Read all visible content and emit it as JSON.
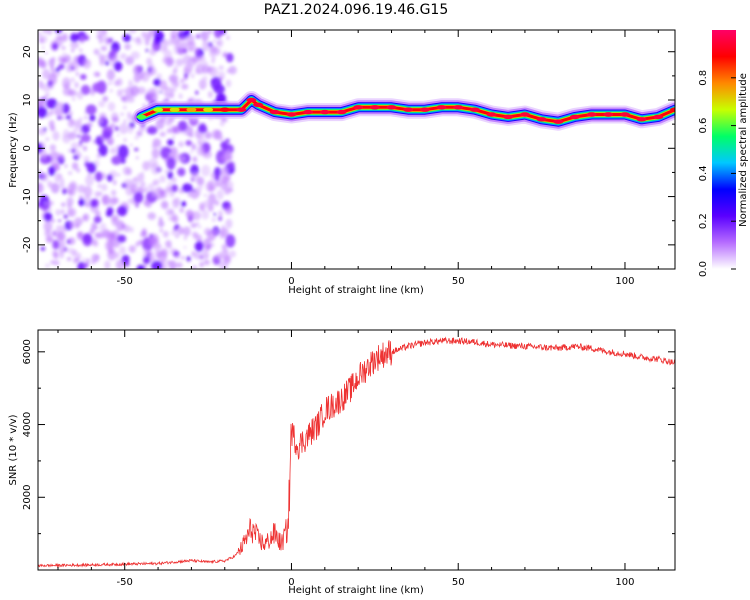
{
  "title": "PAZ1.2024.096.19.46.G15",
  "colors": {
    "snr_line": "#ee3333",
    "axis": "#000000",
    "colormap": [
      "#ffffff",
      "#b66cff",
      "#5a00ff",
      "#0000ff",
      "#00c8ff",
      "#00ff66",
      "#c8ff00",
      "#ff8800",
      "#ff0000",
      "#ff0066"
    ]
  },
  "chart_data": [
    {
      "type": "heatmap",
      "xlabel": "Height of straight line (km)",
      "ylabel": "Frequency (Hz)",
      "xlim": [
        -76,
        115
      ],
      "ylim": [
        -25,
        24.5
      ],
      "xticks": [
        -50,
        0,
        50,
        100
      ],
      "xtick_labels": [
        "-50",
        "0",
        "50",
        "100"
      ],
      "yticks": [
        -20,
        -10,
        0,
        10,
        20
      ],
      "ytick_labels": [
        "-20",
        "-10",
        "0",
        "10",
        "20"
      ],
      "ridge": {
        "x": [
          -45,
          -40,
          -35,
          -30,
          -25,
          -20,
          -15,
          -12,
          -10,
          -5,
          0,
          5,
          10,
          15,
          20,
          25,
          30,
          35,
          40,
          45,
          50,
          55,
          60,
          65,
          70,
          75,
          80,
          85,
          90,
          95,
          100,
          105,
          110,
          115
        ],
        "frequency": [
          6.5,
          8,
          8,
          8,
          8,
          8,
          8,
          10,
          9,
          7.5,
          7,
          7.5,
          7.5,
          7.5,
          8.5,
          8.5,
          8.5,
          8,
          8,
          8.5,
          8.5,
          8,
          7,
          6.5,
          7,
          6,
          5.5,
          6.5,
          7,
          7,
          7,
          6,
          6.5,
          8
        ],
        "amplitude": [
          0.6,
          0.65,
          0.7,
          0.75,
          0.7,
          0.9,
          0.95,
          0.95,
          0.95,
          0.95,
          0.95,
          0.95,
          0.95,
          0.95,
          0.95,
          0.95,
          0.95,
          0.95,
          0.95,
          0.95,
          0.95,
          0.95,
          0.95,
          0.95,
          0.95,
          0.95,
          0.95,
          0.95,
          0.95,
          0.95,
          0.95,
          0.95,
          0.95,
          0.9
        ]
      },
      "noise_region_x": [
        -76,
        -20
      ],
      "colorbar": {
        "label": "Normalized spectral amplitude",
        "range": [
          0,
          1
        ],
        "ticks": [
          0.0,
          0.2,
          0.4,
          0.6,
          0.8
        ],
        "tick_labels": [
          "0.0",
          "0.2",
          "0.4",
          "0.6",
          "0.8"
        ]
      }
    },
    {
      "type": "line",
      "xlabel": "Height of straight line (km)",
      "ylabel": "SNR (10 * v/v)",
      "xlim": [
        -76,
        115
      ],
      "ylim": [
        0,
        6600
      ],
      "xticks": [
        -50,
        0,
        50,
        100
      ],
      "xtick_labels": [
        "-50",
        "0",
        "50",
        "100"
      ],
      "yticks": [
        2000,
        4000,
        6000
      ],
      "ytick_labels": [
        "2000",
        "4000",
        "6000"
      ],
      "series": [
        {
          "x": [
            -76,
            -60,
            -40,
            -30,
            -25,
            -20,
            -17,
            -15,
            -12,
            -10,
            -8,
            -5,
            -3,
            -1,
            0,
            2,
            5,
            8,
            10,
            12,
            15,
            18,
            20,
            22,
            25,
            28,
            30,
            35,
            40,
            45,
            50,
            55,
            60,
            70,
            80,
            85,
            90,
            95,
            100,
            105,
            110,
            115
          ],
          "y": [
            120,
            140,
            180,
            260,
            220,
            250,
            380,
            600,
            1150,
            850,
            700,
            1000,
            700,
            1200,
            3800,
            3400,
            3700,
            4000,
            4400,
            4500,
            4700,
            5000,
            5300,
            5500,
            5800,
            5950,
            6000,
            6150,
            6250,
            6300,
            6300,
            6270,
            6200,
            6150,
            6100,
            6150,
            6100,
            6000,
            5950,
            5850,
            5800,
            5700
          ]
        }
      ]
    }
  ]
}
